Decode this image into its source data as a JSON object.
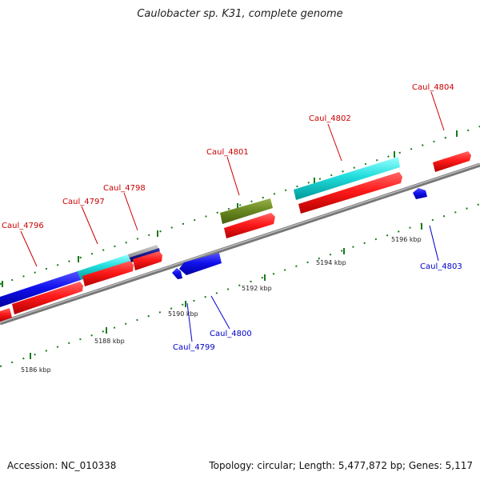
{
  "title": "Caulobacter sp. K31, complete genome",
  "footer": {
    "accession": "Accession: NC_010338",
    "summary": "Topology: circular; Length: 5,477,872 bp; Genes: 5,117"
  },
  "colors": {
    "forward_label": "#cc0000",
    "reverse_label": "#0000cc",
    "backbone": "#888888",
    "tick": "#1a7a1a"
  },
  "ticks": [
    {
      "label": "5186 kbp"
    },
    {
      "label": "5188 kbp"
    },
    {
      "label": "5190 kbp"
    },
    {
      "label": "5192 kbp"
    },
    {
      "label": "5194 kbp"
    },
    {
      "label": "5196 kbp"
    }
  ],
  "labels": {
    "forward": [
      {
        "name": "Caul_4796"
      },
      {
        "name": "Caul_4797"
      },
      {
        "name": "Caul_4798"
      },
      {
        "name": "Caul_4801"
      },
      {
        "name": "Caul_4802"
      },
      {
        "name": "Caul_4804"
      }
    ],
    "reverse": [
      {
        "name": "Caul_4799"
      },
      {
        "name": "Caul_4800"
      },
      {
        "name": "Caul_4803"
      }
    ]
  }
}
